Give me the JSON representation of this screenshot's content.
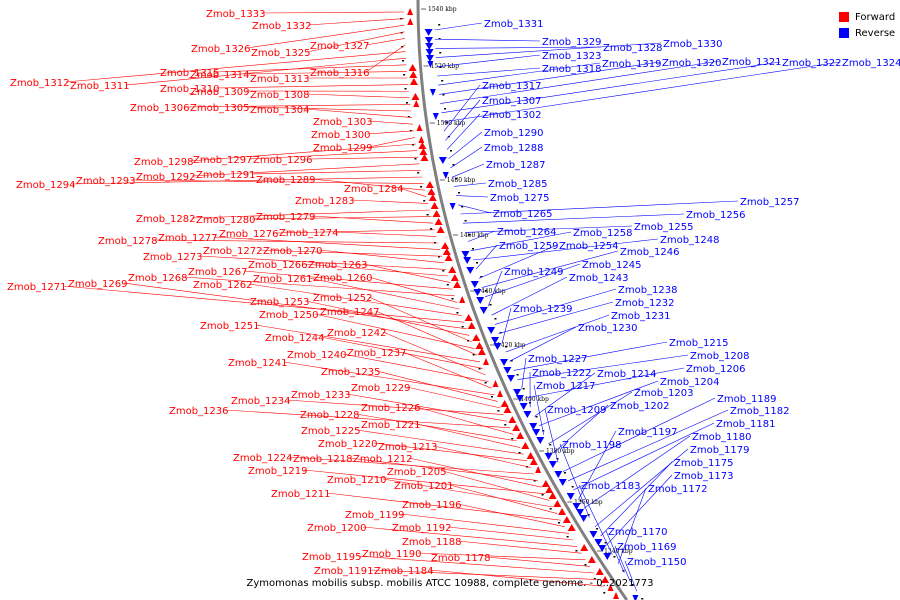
{
  "caption": "Zymomonas mobilis subsp. mobilis ATCC 10988, complete genome. - 0..2021773",
  "legend": [
    {
      "label": "Forward",
      "color": "#ff0000"
    },
    {
      "label": "Reverse",
      "color": "#0000ff"
    }
  ],
  "colors": {
    "forward": "#ff0000",
    "reverse": "#0000ff",
    "backbone": "#808080"
  },
  "ticks": [
    "1540 kbp",
    "1520 kbp",
    "1500 kbp",
    "1480 kbp",
    "1460 kbp",
    "1440 kbp",
    "1420 kbp",
    "1400 kbp",
    "1380 kbp",
    "1360 kbp",
    "1340 kbp"
  ],
  "forward_labels": [
    "Zmob_1333",
    "Zmob_1332",
    "Zmob_1326",
    "Zmob_1325",
    "Zmob_1327",
    "Zmob_1316",
    "Zmob_1312",
    "Zmob_1311",
    "Zmob_1315",
    "Zmob_1314",
    "Zmob_1313",
    "Zmob_1310",
    "Zmob_1309",
    "Zmob_1308",
    "Zmob_1306",
    "Zmob_1305",
    "Zmob_1304",
    "Zmob_1303",
    "Zmob_1300",
    "Zmob_1299",
    "Zmob_1298",
    "Zmob_1297",
    "Zmob_1296",
    "Zmob_1292",
    "Zmob_1291",
    "Zmob_1294",
    "Zmob_1293",
    "Zmob_1289",
    "Zmob_1284",
    "Zmob_1283",
    "Zmob_1282",
    "Zmob_1280",
    "Zmob_1279",
    "Zmob_1276",
    "Zmob_1274",
    "Zmob_1278",
    "Zmob_1277",
    "Zmob_1272",
    "Zmob_1270",
    "Zmob_1273",
    "Zmob_1266",
    "Zmob_1263",
    "Zmob_1267",
    "Zmob_1268",
    "Zmob_1260",
    "Zmob_1261",
    "Zmob_1262",
    "Zmob_1271",
    "Zmob_1269",
    "Zmob_1253",
    "Zmob_1252",
    "Zmob_1250",
    "Zmob_1247",
    "Zmob_1251",
    "Zmob_1244",
    "Zmob_1242",
    "Zmob_1240",
    "Zmob_1237",
    "Zmob_1241",
    "Zmob_1235",
    "Zmob_1229",
    "Zmob_1234",
    "Zmob_1233",
    "Zmob_1236",
    "Zmob_1226",
    "Zmob_1228",
    "Zmob_1221",
    "Zmob_1225",
    "Zmob_1220",
    "Zmob_1213",
    "Zmob_1224",
    "Zmob_1218",
    "Zmob_1212",
    "Zmob_1219",
    "Zmob_1205",
    "Zmob_1210",
    "Zmob_1201",
    "Zmob_1211",
    "Zmob_1196",
    "Zmob_1199",
    "Zmob_1192",
    "Zmob_1200",
    "Zmob_1188",
    "Zmob_1190",
    "Zmob_1178",
    "Zmob_1195",
    "Zmob_1191",
    "Zmob_1184"
  ],
  "reverse_labels": [
    "Zmob_1331",
    "Zmob_1329",
    "Zmob_1328",
    "Zmob_1330",
    "Zmob_1323",
    "Zmob_1318",
    "Zmob_1319",
    "Zmob_1320",
    "Zmob_1321",
    "Zmob_1322",
    "Zmob_1324",
    "Zmob_1317",
    "Zmob_1307",
    "Zmob_1302",
    "Zmob_1290",
    "Zmob_1288",
    "Zmob_1287",
    "Zmob_1285",
    "Zmob_1275",
    "Zmob_1265",
    "Zmob_1257",
    "Zmob_1256",
    "Zmob_1255",
    "Zmob_1264",
    "Zmob_1258",
    "Zmob_1248",
    "Zmob_1259",
    "Zmob_1254",
    "Zmob_1246",
    "Zmob_1245",
    "Zmob_1249",
    "Zmob_1243",
    "Zmob_1238",
    "Zmob_1232",
    "Zmob_1239",
    "Zmob_1231",
    "Zmob_1230",
    "Zmob_1215",
    "Zmob_1208",
    "Zmob_1227",
    "Zmob_1206",
    "Zmob_1222",
    "Zmob_1214",
    "Zmob_1204",
    "Zmob_1217",
    "Zmob_1203",
    "Zmob_1202",
    "Zmob_1209",
    "Zmob_1189",
    "Zmob_1182",
    "Zmob_1181",
    "Zmob_1197",
    "Zmob_1180",
    "Zmob_1198",
    "Zmob_1179",
    "Zmob_1175",
    "Zmob_1173",
    "Zmob_1183",
    "Zmob_1172",
    "Zmob_1170",
    "Zmob_1169",
    "Zmob_1150"
  ]
}
